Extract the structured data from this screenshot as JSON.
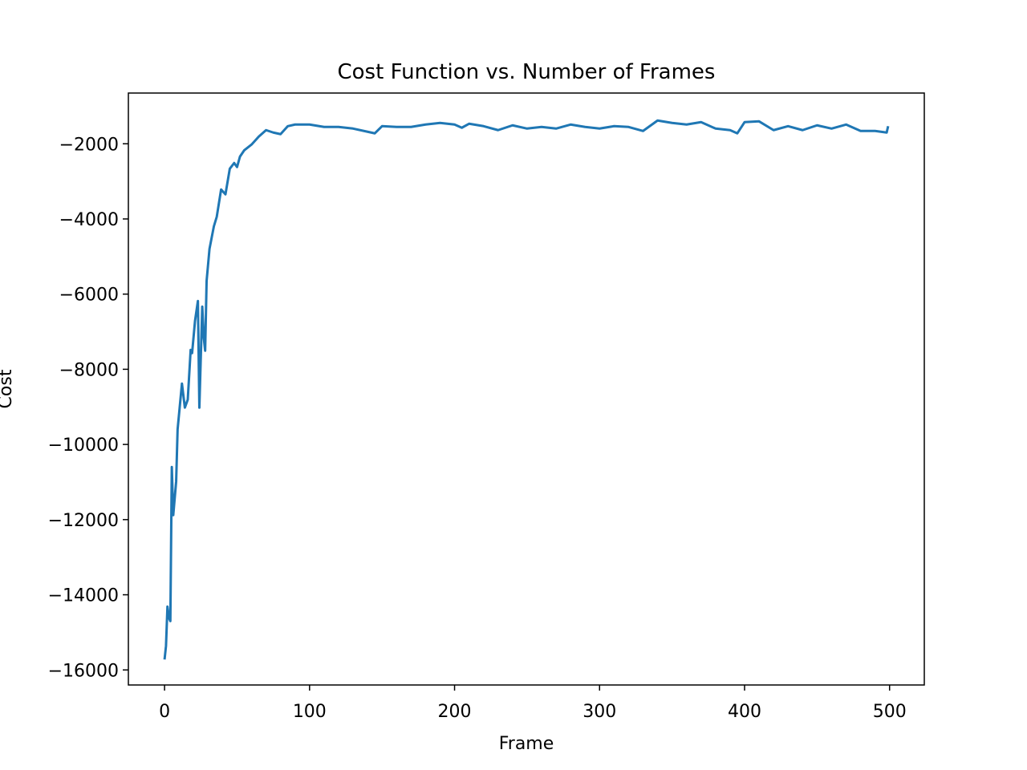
{
  "chart_data": {
    "type": "line",
    "title": "Cost Function vs. Number of Frames",
    "xlabel": "Frame",
    "ylabel": "Cost",
    "xlim": [
      -24.95,
      523.95
    ],
    "ylim": [
      -16400,
      -650
    ],
    "xticks": [
      0,
      100,
      200,
      300,
      400,
      500
    ],
    "yticks": [
      {
        "value": -16000,
        "label": "−16000"
      },
      {
        "value": -14000,
        "label": "−14000"
      },
      {
        "value": -12000,
        "label": "−12000"
      },
      {
        "value": -10000,
        "label": "−10000"
      },
      {
        "value": -8000,
        "label": "−8000"
      },
      {
        "value": -6000,
        "label": "−6000"
      },
      {
        "value": -4000,
        "label": "−4000"
      },
      {
        "value": -2000,
        "label": "−2000"
      }
    ],
    "grid": false,
    "series": [
      {
        "color": "#1f77b4",
        "x": [
          0,
          1,
          2,
          3,
          4,
          5,
          6,
          8,
          9,
          12,
          14,
          16,
          18,
          19,
          21,
          23,
          24,
          26,
          27,
          28,
          29,
          31,
          34,
          36,
          39,
          42,
          45,
          48,
          50,
          52,
          55,
          60,
          65,
          70,
          75,
          80,
          85,
          90,
          100,
          110,
          120,
          130,
          140,
          145,
          150,
          160,
          170,
          180,
          190,
          200,
          205,
          210,
          220,
          230,
          240,
          250,
          260,
          270,
          280,
          290,
          300,
          310,
          320,
          330,
          340,
          350,
          360,
          370,
          380,
          390,
          395,
          400,
          410,
          420,
          430,
          440,
          450,
          460,
          470,
          480,
          490,
          498,
          499
        ],
        "values": [
          -15722,
          -15359,
          -14313,
          -14612,
          -14700,
          -10600,
          -11880,
          -10984,
          -9597,
          -8381,
          -9020,
          -8807,
          -7484,
          -7570,
          -6716,
          -6183,
          -9020,
          -6332,
          -7143,
          -7506,
          -5650,
          -4796,
          -4198,
          -3942,
          -3216,
          -3344,
          -2662,
          -2512,
          -2619,
          -2341,
          -2171,
          -2021,
          -1808,
          -1637,
          -1701,
          -1744,
          -1531,
          -1488,
          -1488,
          -1552,
          -1552,
          -1595,
          -1680,
          -1722,
          -1531,
          -1552,
          -1552,
          -1488,
          -1445,
          -1488,
          -1573,
          -1467,
          -1531,
          -1637,
          -1509,
          -1595,
          -1552,
          -1595,
          -1488,
          -1552,
          -1595,
          -1531,
          -1552,
          -1659,
          -1381,
          -1445,
          -1488,
          -1424,
          -1595,
          -1637,
          -1722,
          -1424,
          -1403,
          -1637,
          -1531,
          -1637,
          -1509,
          -1595,
          -1488,
          -1659,
          -1659,
          -1701,
          -1531
        ]
      }
    ]
  }
}
